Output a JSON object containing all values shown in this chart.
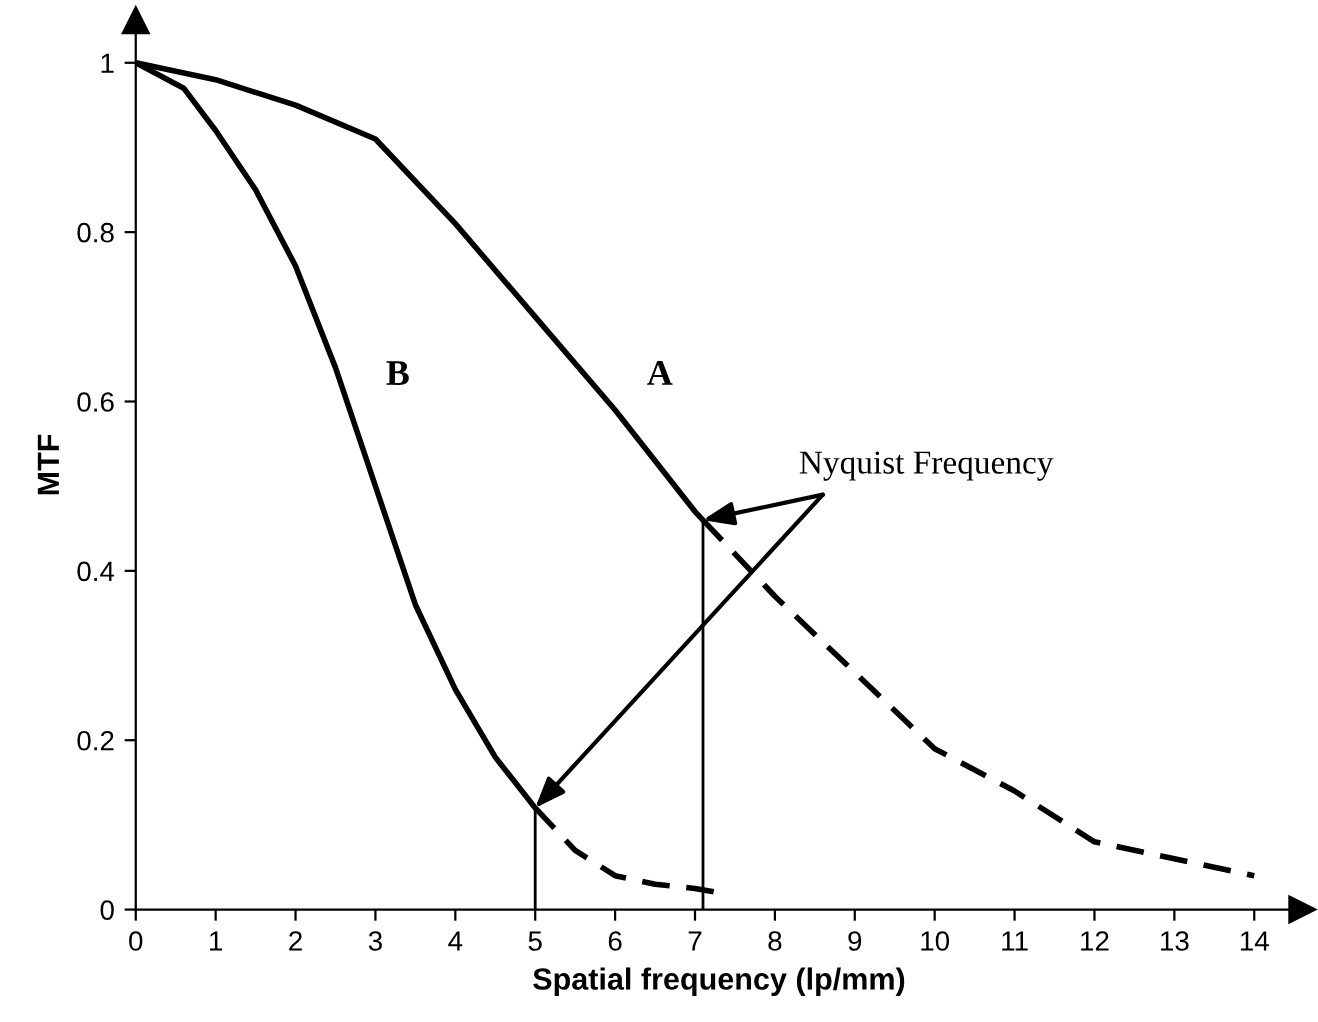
{
  "chart_data": {
    "type": "line",
    "xlabel": "Spatial frequency (lp/mm)",
    "ylabel": "MTF",
    "xlim": [
      0,
      14.6
    ],
    "ylim": [
      0,
      1.05
    ],
    "xticks": [
      0,
      1,
      2,
      3,
      4,
      5,
      6,
      7,
      8,
      9,
      10,
      11,
      12,
      13,
      14
    ],
    "yticks": [
      0,
      0.2,
      0.4,
      0.6,
      0.8,
      1
    ],
    "grid": false,
    "marker": "none",
    "series": [
      {
        "name": "A",
        "color": "#000000",
        "line_style": "solid",
        "x": [
          0,
          1,
          2,
          3,
          4,
          5,
          6,
          7,
          7.1
        ],
        "values": [
          1,
          0.98,
          0.95,
          0.91,
          0.81,
          0.7,
          0.59,
          0.47,
          0.46
        ]
      },
      {
        "color": "#000000",
        "line_style": "dashed",
        "x": [
          7.1,
          8,
          9,
          10,
          11,
          12,
          13,
          14
        ],
        "values": [
          0.46,
          0.37,
          0.28,
          0.19,
          0.14,
          0.08,
          0.06,
          0.04
        ]
      },
      {
        "name": "B",
        "color": "#000000",
        "line_style": "solid",
        "x": [
          0,
          0.6,
          1,
          1.5,
          2,
          2.5,
          3,
          3.5,
          4,
          4.5,
          5
        ],
        "values": [
          1,
          0.97,
          0.92,
          0.85,
          0.76,
          0.64,
          0.5,
          0.36,
          0.26,
          0.18,
          0.12
        ]
      },
      {
        "color": "#000000",
        "line_style": "dashed",
        "x": [
          5,
          5.5,
          6,
          6.5,
          7,
          7.3
        ],
        "values": [
          0.12,
          0.07,
          0.04,
          0.03,
          0.025,
          0.02
        ]
      }
    ],
    "ref_lines": [
      {
        "axis": "x",
        "value": 7.1,
        "color": "#000000"
      },
      {
        "axis": "x",
        "value": 5,
        "color": "#000000"
      }
    ],
    "annotations": [
      {
        "text": "Nyquist Frequency",
        "x": 7.1,
        "y": 0.46
      }
    ]
  }
}
